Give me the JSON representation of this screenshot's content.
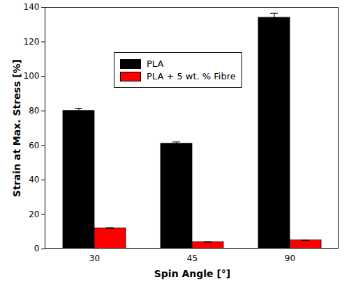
{
  "chart_data": {
    "type": "bar",
    "x_label": "Spin Angle [°]",
    "y_label": "Strain at Max. Stress [%]",
    "categories": [
      "30",
      "45",
      "90"
    ],
    "series": [
      {
        "name": "PLA",
        "color": "#000000",
        "values": [
          80,
          61,
          134
        ],
        "errors": [
          1.5,
          1,
          2.5
        ]
      },
      {
        "name": "PLA + 5 wt. % Fibre",
        "color": "#ff0000",
        "values": [
          12,
          4,
          5
        ],
        "errors": [
          0.3,
          0.2,
          0.2
        ]
      }
    ],
    "ylim": [
      0,
      140
    ],
    "yticks": [
      0,
      20,
      40,
      60,
      80,
      100,
      120,
      140
    ],
    "grid": false,
    "legend": "upper left"
  }
}
